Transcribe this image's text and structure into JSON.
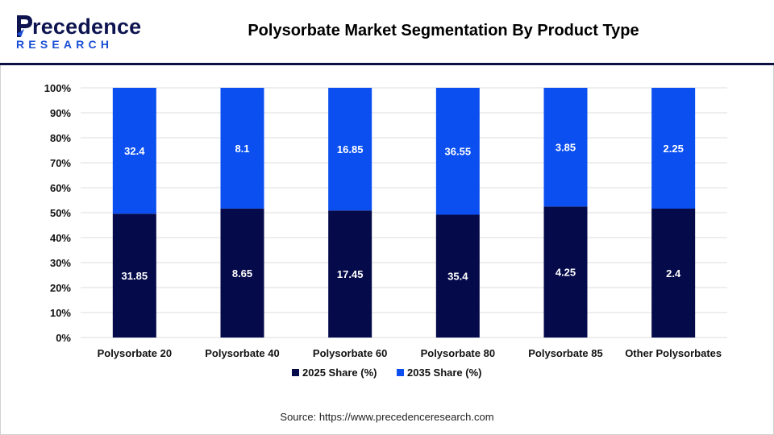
{
  "header": {
    "logo_text": "recedence",
    "logo_subtext": "RESEARCH",
    "title": "Polysorbate Market Segmentation By Product Type"
  },
  "source": "Source: https://www.precedenceresearch.com",
  "colors": {
    "series_2025": "#050a4a",
    "series_2035": "#0b4ff0",
    "grid": "#dcdcdc",
    "brand_dark": "#0d1450",
    "brand_blue": "#1a4fd6"
  },
  "chart_data": {
    "type": "bar",
    "stacked": "percent",
    "categories": [
      "Polysorbate 20",
      "Polysorbate 40",
      "Polysorbate 60",
      "Polysorbate 80",
      "Polysorbate 85",
      "Other Polysorbates"
    ],
    "series": [
      {
        "name": "2025 Share (%)",
        "values": [
          31.85,
          8.65,
          17.45,
          35.4,
          4.25,
          2.4
        ],
        "labels": [
          "31.85",
          "8.65",
          "17.45",
          "35.4",
          "4.25",
          "2.4"
        ]
      },
      {
        "name": "2035 Share (%)",
        "values": [
          32.4,
          8.1,
          16.85,
          36.55,
          3.85,
          2.25
        ],
        "labels": [
          "32.4",
          "8.1",
          "16.85",
          "36.55",
          "3.85",
          "2.25"
        ]
      }
    ],
    "y_ticks": [
      "0%",
      "10%",
      "20%",
      "30%",
      "40%",
      "50%",
      "60%",
      "70%",
      "80%",
      "90%",
      "100%"
    ],
    "ylim": [
      0,
      100
    ],
    "grid": true,
    "legend_position": "bottom"
  }
}
